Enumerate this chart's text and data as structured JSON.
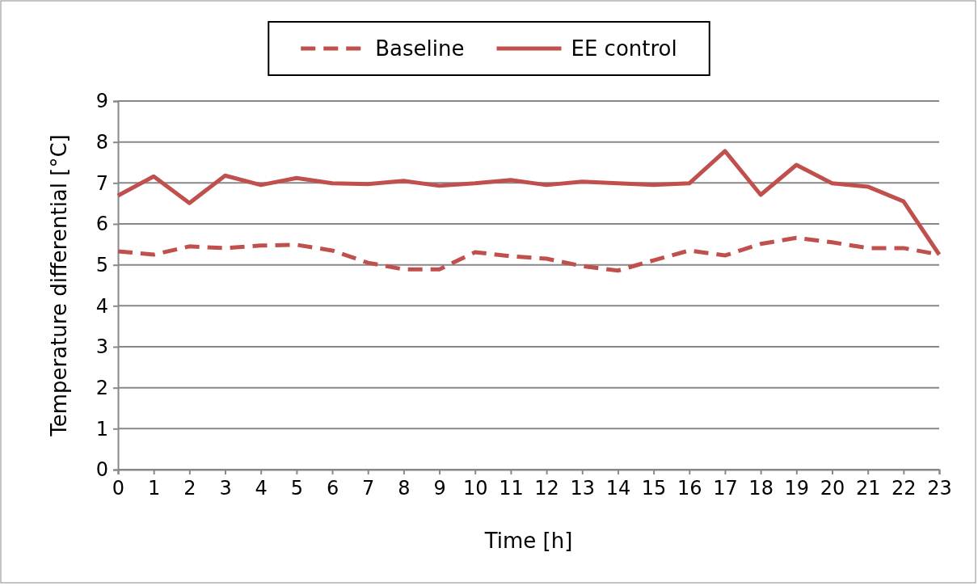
{
  "chart_data": {
    "type": "line",
    "xlabel": "Time [h]",
    "ylabel": "Temperature differential [°C]",
    "x": [
      0,
      1,
      2,
      3,
      4,
      5,
      6,
      7,
      8,
      9,
      10,
      11,
      12,
      13,
      14,
      15,
      16,
      17,
      18,
      19,
      20,
      21,
      22,
      23
    ],
    "xlim": [
      0,
      23
    ],
    "xticks": [
      0,
      1,
      2,
      3,
      4,
      5,
      6,
      7,
      8,
      9,
      10,
      11,
      12,
      13,
      14,
      15,
      16,
      17,
      18,
      19,
      20,
      21,
      22,
      23
    ],
    "ylim": [
      0,
      9
    ],
    "yticks": [
      0,
      1,
      2,
      3,
      4,
      5,
      6,
      7,
      8,
      9
    ],
    "grid": "y",
    "legend": "top",
    "marker": "none",
    "series": [
      {
        "name": "Baseline",
        "color": "#c0504d",
        "line_style": "dashed",
        "values": [
          5.33,
          5.25,
          5.45,
          5.41,
          5.47,
          5.49,
          5.35,
          5.05,
          4.89,
          4.89,
          5.31,
          5.21,
          5.15,
          4.97,
          4.86,
          5.11,
          5.35,
          5.23,
          5.51,
          5.66,
          5.55,
          5.41,
          5.41,
          5.25
        ]
      },
      {
        "name": "EE control",
        "color": "#c0504d",
        "line_style": "solid",
        "values": [
          6.69,
          7.16,
          6.51,
          7.18,
          6.95,
          7.12,
          6.99,
          6.97,
          7.05,
          6.93,
          6.99,
          7.07,
          6.95,
          7.03,
          6.99,
          6.95,
          6.99,
          7.78,
          6.71,
          7.44,
          6.99,
          6.91,
          6.55,
          5.25
        ]
      }
    ]
  }
}
